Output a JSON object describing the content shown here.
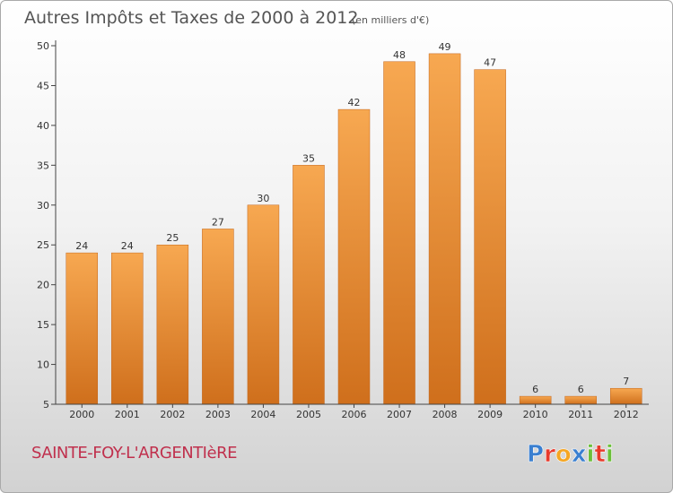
{
  "title": "Autres Impôts et Taxes de 2000 à 2012",
  "unit_note": "(en milliers d'€)",
  "place_name": "SAINTE-FOY-L'ARGENTIèRE",
  "brand": {
    "name": "Proxiti",
    "letters": [
      {
        "ch": "P",
        "color": "#3a7fd0"
      },
      {
        "ch": "r",
        "color": "#e83a2c"
      },
      {
        "ch": "o",
        "color": "#f5a623"
      },
      {
        "ch": "x",
        "color": "#3a7fd0"
      },
      {
        "ch": "i",
        "color": "#6cbf3a"
      },
      {
        "ch": "t",
        "color": "#e83a2c"
      },
      {
        "ch": "i",
        "color": "#6cbf3a"
      }
    ]
  },
  "colors": {
    "bar_light": "#f7a851",
    "bar_dark": "#cf6f1c",
    "axis": "#444444",
    "place": "#c0304d"
  },
  "chart_data": {
    "type": "bar",
    "categories": [
      "2000",
      "2001",
      "2002",
      "2003",
      "2004",
      "2005",
      "2006",
      "2007",
      "2008",
      "2009",
      "2010",
      "2011",
      "2012"
    ],
    "values": [
      24,
      24,
      25,
      27,
      30,
      35,
      42,
      48,
      49,
      47,
      6,
      6,
      7
    ],
    "ylim": [
      5,
      50
    ],
    "yticks": [
      5,
      10,
      15,
      20,
      25,
      30,
      35,
      40,
      45,
      50
    ],
    "grid": false,
    "data_labels": true
  }
}
